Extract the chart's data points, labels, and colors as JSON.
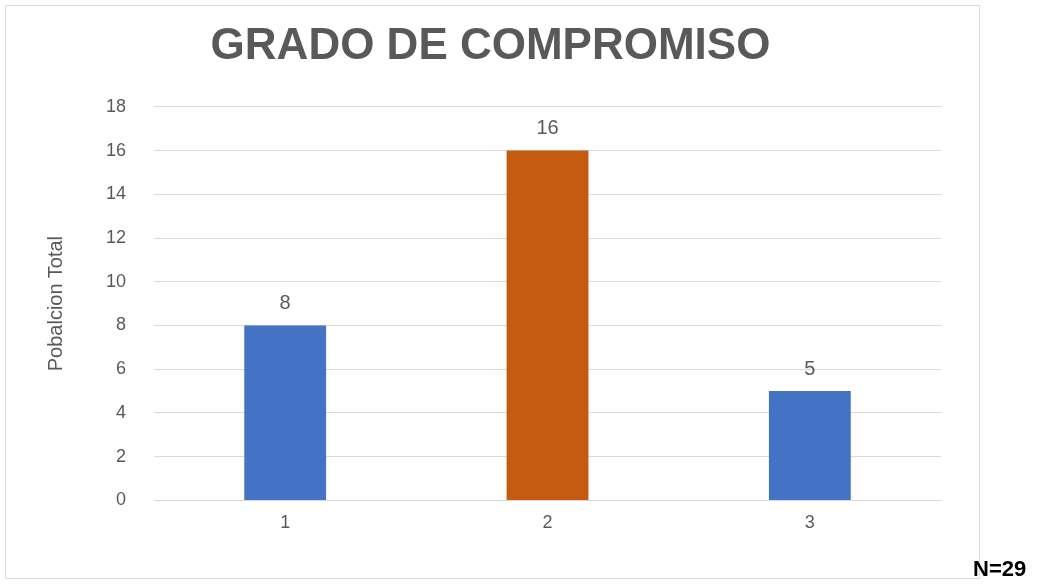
{
  "chart_data": {
    "type": "bar",
    "title": "GRADO DE COMPROMISO",
    "ylabel": "Pobalcion Total",
    "categories": [
      "1",
      "2",
      "3"
    ],
    "values": [
      8,
      16,
      5
    ],
    "colors": [
      "#4472c4",
      "#c55a11",
      "#4472c4"
    ],
    "ylim": [
      0,
      18
    ],
    "yticks": [
      0,
      2,
      4,
      6,
      8,
      10,
      12,
      14,
      16,
      18
    ],
    "grid": "y",
    "data_labels": true,
    "legend": false,
    "annotations": [
      "N=29"
    ]
  }
}
